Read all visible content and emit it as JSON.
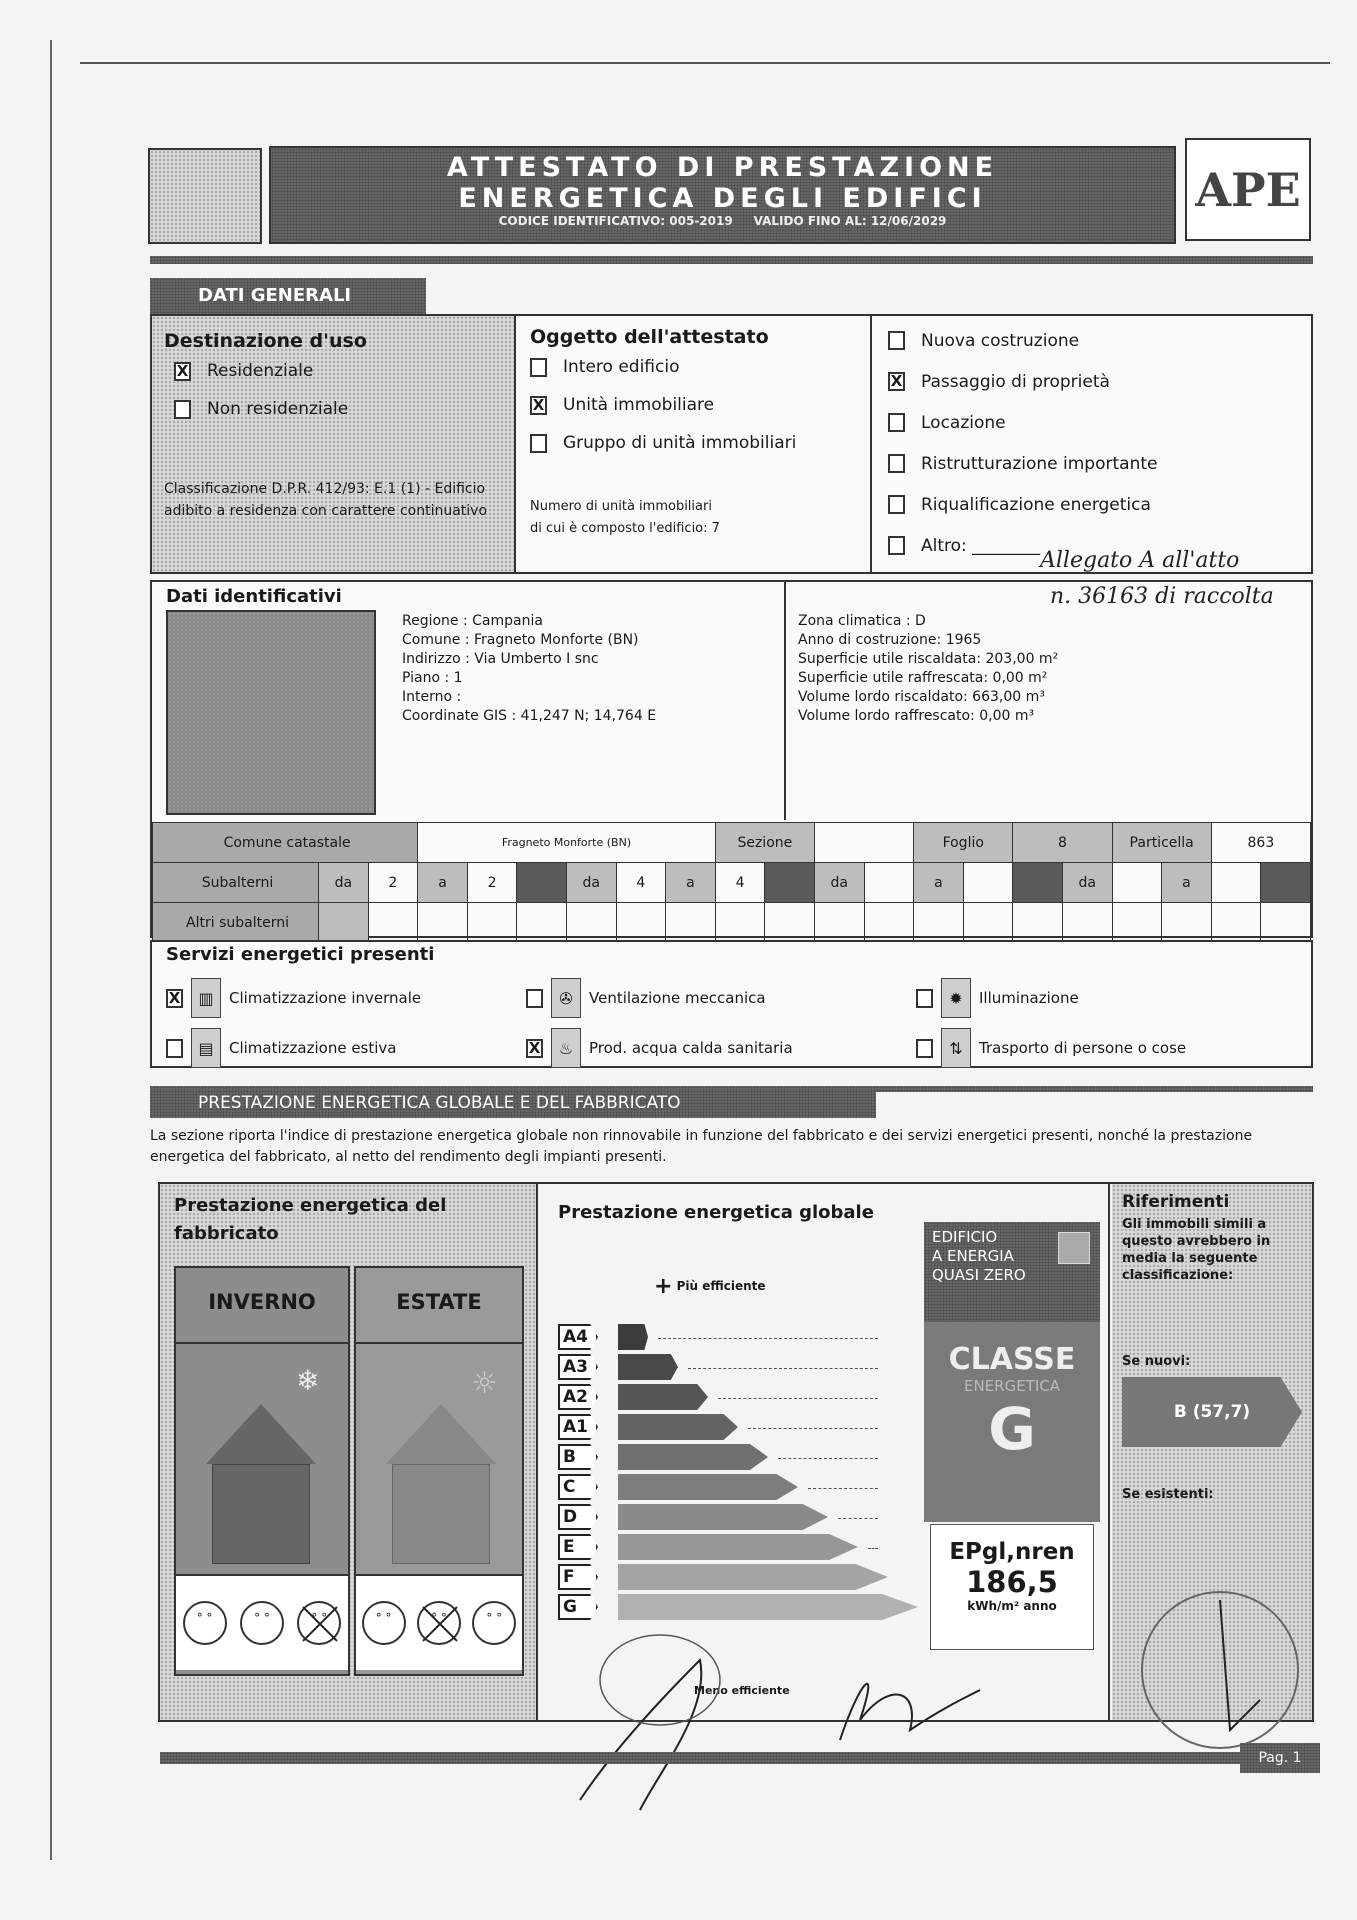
{
  "header": {
    "title_line1": "ATTESTATO DI PRESTAZIONE",
    "title_line2": "ENERGETICA DEGLI EDIFICI",
    "codice_label": "CODICE IDENTIFICATIVO:",
    "codice": "005-2019",
    "valido_label": "VALIDO FINO AL:",
    "valido": "12/06/2029",
    "logo": "APE"
  },
  "dati_generali": {
    "tab": "DATI GENERALI",
    "destinazione": {
      "title": "Destinazione d'uso",
      "options": [
        {
          "label": "Residenziale",
          "checked": true
        },
        {
          "label": "Non residenziale",
          "checked": false
        }
      ],
      "classificazione": "Classificazione D.P.R. 412/93: E.1 (1) - Edificio adibito a residenza con carattere continuativo"
    },
    "oggetto": {
      "title": "Oggetto dell'attestato",
      "options": [
        {
          "label": "Intero edificio",
          "checked": false
        },
        {
          "label": "Unità immobiliare",
          "checked": true
        },
        {
          "label": "Gruppo di unità immobiliari",
          "checked": false
        }
      ],
      "numero_line1": "Numero di unità immobiliari",
      "numero_line2": "di cui è composto l'edificio: 7"
    },
    "motivo": {
      "options": [
        {
          "label": "Nuova costruzione",
          "checked": false
        },
        {
          "label": "Passaggio di proprietà",
          "checked": true
        },
        {
          "label": "Locazione",
          "checked": false
        },
        {
          "label": "Ristrutturazione importante",
          "checked": false
        },
        {
          "label": "Riqualificazione energetica",
          "checked": false
        },
        {
          "label": "Altro: ________",
          "checked": false
        }
      ]
    }
  },
  "annotation": {
    "allegato": "Allegato  A  all'atto",
    "numero": "n. 36163  di raccolta"
  },
  "dati_identificativi": {
    "title": "Dati identificativi",
    "left": [
      "Regione : Campania",
      "Comune : Fragneto Monforte (BN)",
      "Indirizzo : Via Umberto I snc",
      "Piano : 1",
      "Interno :",
      "Coordinate GIS : 41,247 N; 14,764 E"
    ],
    "right": [
      "Zona climatica : D",
      "Anno di costruzione: 1965",
      "Superficie utile riscaldata: 203,00 m²",
      "Superficie utile raffrescata: 0,00 m²",
      "Volume lordo riscaldato: 663,00 m³",
      "Volume lordo raffrescato: 0,00 m³"
    ],
    "catasto": {
      "comune_label": "Comune catastale",
      "comune": "Fragneto Monforte (BN)",
      "sezione_label": "Sezione",
      "sezione": "",
      "foglio_label": "Foglio",
      "foglio": "8",
      "particella_label": "Particella",
      "particella": "863",
      "subalterni_label": "Subalterni",
      "subalterni": [
        [
          "da",
          "2",
          "a",
          "2"
        ],
        [
          "da",
          "4",
          "a",
          "4"
        ],
        [
          "da",
          "",
          "a",
          ""
        ],
        [
          "da",
          "",
          "a",
          ""
        ]
      ],
      "altri_label": "Altri subalterni"
    }
  },
  "servizi": {
    "title": "Servizi energetici presenti",
    "items": [
      {
        "label": "Climatizzazione invernale",
        "checked": true,
        "icon": "radiator-icon"
      },
      {
        "label": "Climatizzazione estiva",
        "checked": false,
        "icon": "air-conditioner-icon"
      },
      {
        "label": "Ventilazione meccanica",
        "checked": false,
        "icon": "fan-icon"
      },
      {
        "label": "Prod. acqua calda sanitaria",
        "checked": true,
        "icon": "water-tap-icon"
      },
      {
        "label": "Illuminazione",
        "checked": false,
        "icon": "lamp-icon"
      },
      {
        "label": "Trasporto di persone o cose",
        "checked": false,
        "icon": "elevator-icon"
      }
    ]
  },
  "prestazione": {
    "tab": "PRESTAZIONE ENERGETICA GLOBALE  E DEL FABBRICATO",
    "intro": "La sezione riporta l'indice di prestazione energetica globale non rinnovabile in funzione del fabbricato e dei servizi energetici presenti, nonché la prestazione energetica del fabbricato, al netto del rendimento degli impianti presenti.",
    "fabbricato": {
      "title": "Prestazione energetica del fabbricato",
      "inverno": "INVERNO",
      "estate": "ESTATE",
      "inverno_marked": 2,
      "estate_marked": 1
    },
    "globale": {
      "title": "Prestazione energetica globale",
      "piu": "Più efficiente",
      "meno": "Meno efficiente",
      "classes": [
        "A4",
        "A3",
        "A2",
        "A1",
        "B",
        "C",
        "D",
        "E",
        "F",
        "G"
      ],
      "nzeb_line1": "EDIFICIO",
      "nzeb_line2": "A ENERGIA",
      "nzeb_line3": "QUASI ZERO",
      "nzeb_checked": false,
      "classe_line1": "CLASSE",
      "classe_line2": "ENERGETICA",
      "classe": "G",
      "ep_label": "EPgl,nren",
      "ep_value": "186,5",
      "ep_unit": "kWh/m² anno"
    },
    "riferimenti": {
      "title": "Riferimenti",
      "text": "Gli immobili simili a questo avrebbero in media la seguente classificazione:",
      "nuovi_label": "Se nuovi:",
      "nuovi": "B (57,7)",
      "esistenti_label": "Se esistenti:"
    }
  },
  "footer": {
    "page": "Pag. 1"
  }
}
